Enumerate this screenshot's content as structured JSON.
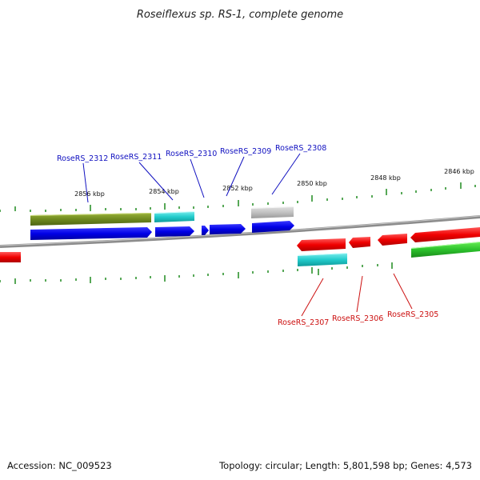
{
  "title": "Roseiflexus sp. RS-1, complete genome",
  "footer": {
    "accession": "Accession: NC_009523",
    "summary": "Topology: circular; Length: 5,801,598 bp; Genes: 4,573"
  },
  "colors": {
    "top_labels": "#1010c0",
    "bottom_labels": "#cc1010",
    "ticks": "#1f8a1f",
    "backbone": "#8c8c8c"
  },
  "tick_labels": [
    "2856 kbp",
    "2854 kbp",
    "2852 kbp",
    "2850 kbp",
    "2848 kbp",
    "2846 kbp"
  ],
  "top_gene_labels": [
    "RoseRS_2312",
    "RoseRS_2311",
    "RoseRS_2310",
    "RoseRS_2309",
    "RoseRS_2308"
  ],
  "bottom_gene_labels": [
    "RoseRS_2307",
    "RoseRS_2306",
    "RoseRS_2305"
  ]
}
